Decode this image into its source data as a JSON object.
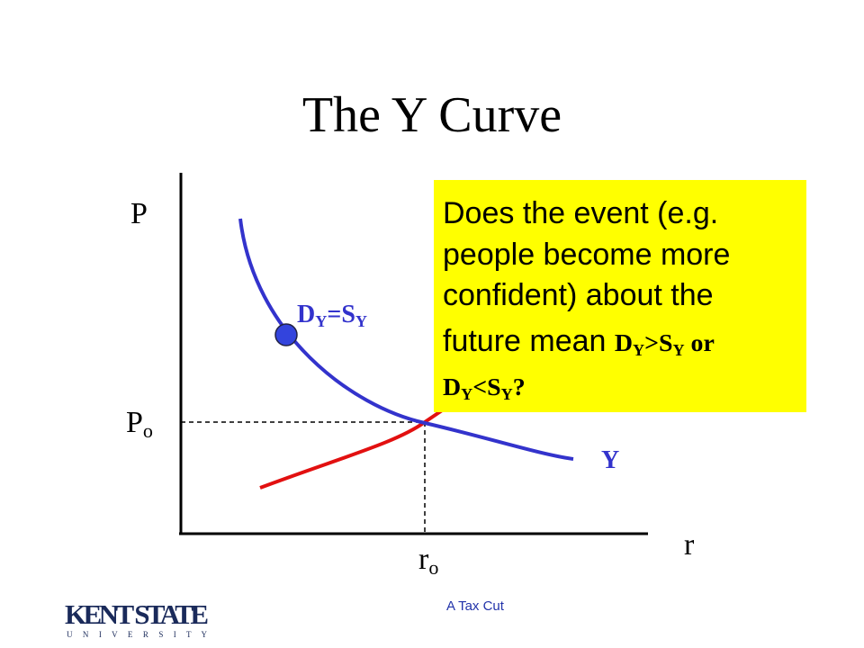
{
  "title": "The Y Curve",
  "axes": {
    "y_label": "P",
    "x_label": "r"
  },
  "equilibrium": {
    "price": [
      {
        "main": "P",
        "sub": "o"
      }
    ],
    "rate": [
      {
        "main": "r",
        "sub": "o"
      }
    ]
  },
  "curves": {
    "ds_label": [
      {
        "main": "D",
        "sub": "Y"
      },
      {
        "main": "=S",
        "sub": "Y"
      }
    ],
    "y_label": "Y"
  },
  "callout": {
    "lines": [
      [
        {
          "main": "Does the event (e.g."
        }
      ],
      [
        {
          "main": "people become more"
        }
      ],
      [
        {
          "main": "confident) about the"
        }
      ],
      [
        {
          "main": "future mean "
        },
        {
          "main": "D",
          "sub": "Y",
          "bold": true
        },
        {
          "main": ">S",
          "sub": "Y",
          "bold": true
        },
        {
          "main": " or",
          "bold": true
        }
      ],
      [
        {
          "main": "D",
          "sub": "Y",
          "bold": true
        },
        {
          "main": "<S",
          "sub": "Y",
          "bold": true
        },
        {
          "main": "?",
          "bold": true
        }
      ]
    ]
  },
  "footer": "A Tax Cut",
  "logo": {
    "name": "KENT STATE",
    "sub": "U N I V E R S I T Y"
  }
}
